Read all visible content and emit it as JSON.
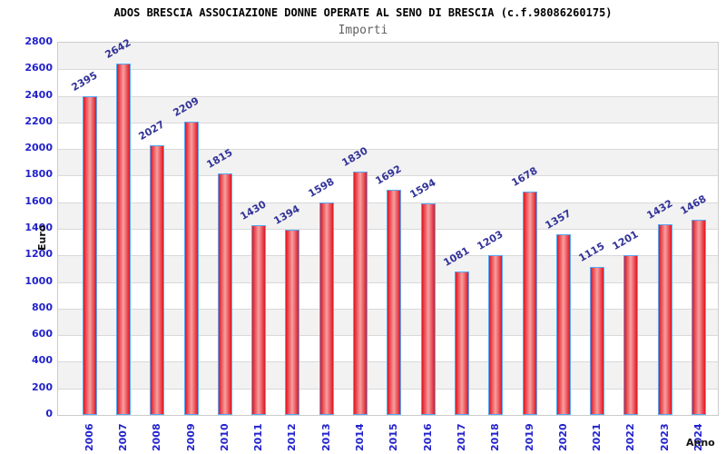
{
  "header": {
    "title": "ADOS BRESCIA ASSOCIAZIONE DONNE OPERATE AL SENO DI BRESCIA (c.f.98086260175)",
    "subtitle": "Importi"
  },
  "chart_data": {
    "type": "bar",
    "title": "ADOS BRESCIA ASSOCIAZIONE DONNE OPERATE AL SENO DI BRESCIA (c.f.98086260175)",
    "subtitle": "Importi",
    "xlabel": "Anno",
    "ylabel": "Euro",
    "categories": [
      "2006",
      "2007",
      "2008",
      "2009",
      "2010",
      "2011",
      "2012",
      "2013",
      "2014",
      "2015",
      "2016",
      "2017",
      "2018",
      "2019",
      "2020",
      "2021",
      "2022",
      "2023",
      "2024"
    ],
    "values": [
      2395,
      2642,
      2027,
      2209,
      1815,
      1430,
      1394,
      1598,
      1830,
      1692,
      1594,
      1081,
      1203,
      1678,
      1357,
      1115,
      1201,
      1432,
      1468
    ],
    "ylim": [
      0,
      2800
    ],
    "ytick_step": 200,
    "grid": true,
    "legend_position": "none",
    "colors": {
      "bar_edge_red": "#e01622",
      "bar_mid_red": "#f7a0a0",
      "bar_border_blue": "#57a8f5",
      "value_label": "#333399",
      "tick_label": "#2222cc",
      "band_gray": "#f2f2f2",
      "band_white": "#ffffff",
      "gridline": "#d9d9d9",
      "plot_border": "#cccccc",
      "title_color": "#000000",
      "subtitle_color": "#606060"
    }
  }
}
